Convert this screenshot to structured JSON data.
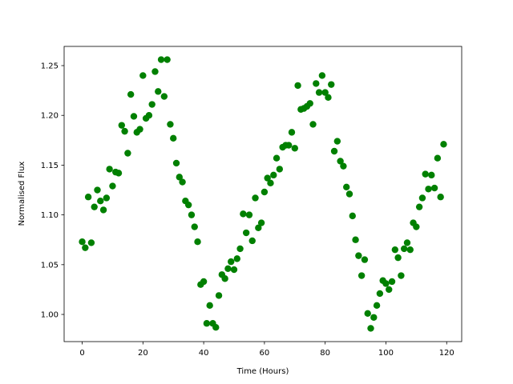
{
  "chart_data": {
    "type": "scatter",
    "xlabel": "Time (Hours)",
    "ylabel": "Normalised Flux",
    "color": "#008000",
    "xlim": [
      -5.95,
      124.95
    ],
    "ylim": [
      0.9727,
      1.2693
    ],
    "xticks": [
      0,
      20,
      40,
      60,
      80,
      100,
      120
    ],
    "yticks": [
      {
        "value": 1.0,
        "label": "1.00"
      },
      {
        "value": 1.05,
        "label": "1.05"
      },
      {
        "value": 1.1,
        "label": "1.10"
      },
      {
        "value": 1.15,
        "label": "1.15"
      },
      {
        "value": 1.2,
        "label": "1.20"
      },
      {
        "value": 1.25,
        "label": "1.25"
      }
    ],
    "x": [
      0,
      1,
      2,
      3,
      4,
      5,
      6,
      7,
      8,
      9,
      10,
      11,
      12,
      13,
      14,
      15,
      16,
      17,
      18,
      19,
      20,
      21,
      22,
      23,
      24,
      25,
      26,
      27,
      28,
      29,
      30,
      31,
      32,
      33,
      34,
      35,
      36,
      37,
      38,
      39,
      40,
      41,
      42,
      43,
      44,
      45,
      46,
      47,
      48,
      49,
      50,
      51,
      52,
      53,
      54,
      55,
      56,
      57,
      58,
      59,
      60,
      61,
      62,
      63,
      64,
      65,
      66,
      67,
      68,
      69,
      70,
      71,
      72,
      73,
      74,
      75,
      76,
      77,
      78,
      79,
      80,
      81,
      82,
      83,
      84,
      85,
      86,
      87,
      88,
      89,
      90,
      91,
      92,
      93,
      94,
      95,
      96,
      97,
      98,
      99,
      100,
      101,
      102,
      103,
      104,
      105,
      106,
      107,
      108,
      109,
      110,
      111,
      112,
      113,
      114,
      115,
      116,
      117,
      118,
      119
    ],
    "values": [
      1.073,
      1.067,
      1.118,
      1.072,
      1.108,
      1.125,
      1.114,
      1.105,
      1.117,
      1.146,
      1.129,
      1.143,
      1.142,
      1.19,
      1.184,
      1.162,
      1.221,
      1.199,
      1.183,
      1.186,
      1.24,
      1.197,
      1.2,
      1.211,
      1.244,
      1.224,
      1.256,
      1.219,
      1.256,
      1.191,
      1.177,
      1.152,
      1.138,
      1.133,
      1.114,
      1.11,
      1.1,
      1.088,
      1.073,
      1.03,
      1.033,
      0.991,
      1.009,
      0.991,
      0.987,
      1.019,
      1.04,
      1.036,
      1.046,
      1.053,
      1.045,
      1.056,
      1.066,
      1.101,
      1.082,
      1.1,
      1.074,
      1.117,
      1.087,
      1.092,
      1.123,
      1.137,
      1.132,
      1.14,
      1.157,
      1.146,
      1.168,
      1.17,
      1.17,
      1.183,
      1.167,
      1.23,
      1.206,
      1.207,
      1.209,
      1.212,
      1.191,
      1.232,
      1.223,
      1.24,
      1.223,
      1.218,
      1.231,
      1.164,
      1.174,
      1.154,
      1.149,
      1.128,
      1.121,
      1.099,
      1.075,
      1.059,
      1.039,
      1.055,
      1.001,
      0.986,
      0.997,
      1.009,
      1.021,
      1.034,
      1.031,
      1.025,
      1.033,
      1.065,
      1.057,
      1.039,
      1.066,
      1.072,
      1.065,
      1.092,
      1.088,
      1.108,
      1.117,
      1.141,
      1.126,
      1.14,
      1.127,
      1.157,
      1.118,
      1.171
    ]
  }
}
